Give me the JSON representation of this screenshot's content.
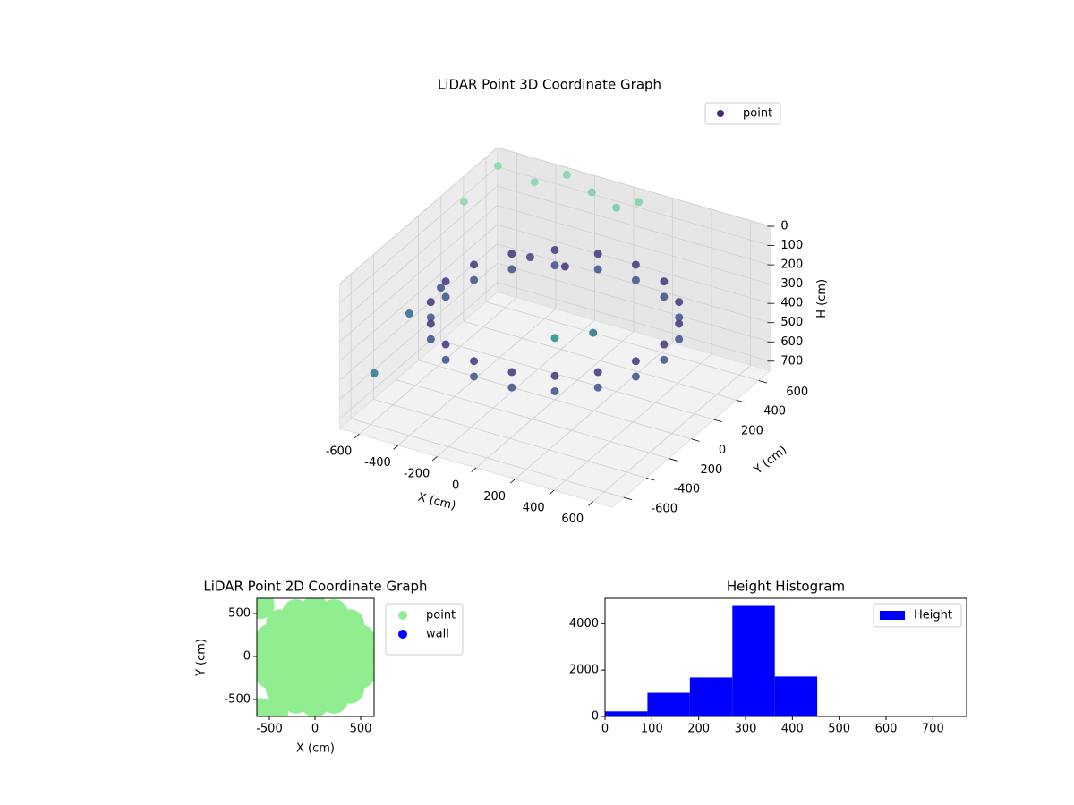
{
  "chart_data": [
    {
      "type": "scatter3d",
      "title": "LiDAR Point 3D Coordinate Graph",
      "xlabel": "X (cm)",
      "ylabel": "Y (cm)",
      "zlabel": "H (cm)",
      "xlim": [
        -700,
        700
      ],
      "ylim": [
        -700,
        700
      ],
      "zlim": [
        0,
        750
      ],
      "z_inverted": true,
      "xticks": [
        -600,
        -400,
        -200,
        0,
        200,
        400,
        600
      ],
      "yticks": [
        -600,
        -400,
        -200,
        0,
        200,
        400,
        600
      ],
      "zticks": [
        0,
        100,
        200,
        300,
        400,
        500,
        600,
        700
      ],
      "grid": true,
      "legend": "upper right",
      "series": [
        {
          "name": "point",
          "color": "#482878",
          "x": [
            560,
            526,
            429,
            280,
            97,
            -97,
            -280,
            -429,
            -526,
            -560,
            -526,
            -429,
            -280,
            -97,
            97,
            280,
            429,
            526,
            560,
            526,
            429,
            280,
            97,
            -97,
            -280,
            -429,
            -526,
            -560,
            -526,
            -429,
            -280,
            -97,
            97,
            280,
            429,
            526,
            -650,
            -480,
            -320,
            -180,
            -60,
            60,
            -640,
            -660,
            -650,
            -620,
            0,
            150,
            -300,
            -150
          ],
          "y": [
            0,
            192,
            360,
            485,
            551,
            551,
            485,
            360,
            192,
            0,
            -192,
            -360,
            -485,
            -551,
            -551,
            -485,
            -360,
            -192,
            0,
            192,
            360,
            485,
            551,
            551,
            485,
            360,
            192,
            0,
            -192,
            -360,
            -485,
            -551,
            -551,
            -485,
            -360,
            -192,
            620,
            650,
            660,
            640,
            650,
            640,
            300,
            -150,
            -480,
            60,
            0,
            80,
            300,
            350
          ],
          "z": [
            300,
            300,
            300,
            300,
            300,
            300,
            300,
            300,
            300,
            300,
            300,
            300,
            300,
            300,
            300,
            300,
            300,
            300,
            380,
            380,
            380,
            380,
            380,
            380,
            380,
            380,
            380,
            380,
            380,
            380,
            380,
            380,
            380,
            380,
            380,
            380,
            40,
            90,
            10,
            50,
            100,
            30,
            60,
            420,
            560,
            380,
            430,
            400,
            250,
            280
          ],
          "colors": [
            "#46327e",
            "#46327e",
            "#46327e",
            "#46327e",
            "#46327e",
            "#46327e",
            "#46327e",
            "#46327e",
            "#46327e",
            "#46327e",
            "#46327e",
            "#46327e",
            "#46327e",
            "#46327e",
            "#46327e",
            "#46327e",
            "#46327e",
            "#46327e",
            "#3b528b",
            "#3b528b",
            "#3b528b",
            "#3b528b",
            "#3b528b",
            "#3b528b",
            "#3b528b",
            "#3b528b",
            "#3b528b",
            "#3b528b",
            "#3b528b",
            "#3b528b",
            "#3b528b",
            "#3b528b",
            "#3b528b",
            "#3b528b",
            "#3b528b",
            "#3b528b",
            "#8fd7a9",
            "#86d5ab",
            "#7fd2ac",
            "#74cfad",
            "#6ccdae",
            "#7dd1ab",
            "#8fd7a9",
            "#31688e",
            "#2a788e",
            "#3b518b",
            "#21908d",
            "#2c728e",
            "#433e85",
            "#472d7b"
          ]
        }
      ]
    },
    {
      "type": "scatter",
      "title": "LiDAR Point 2D Coordinate Graph",
      "xlabel": "X (cm)",
      "ylabel": "Y (cm)",
      "xlim": [
        -637,
        647
      ],
      "ylim": [
        -698,
        677
      ],
      "xticks": [
        -500,
        0,
        500
      ],
      "yticks": [
        -500,
        0,
        500
      ],
      "legend": "right",
      "series": [
        {
          "name": "point",
          "color": "#90ee90",
          "x": [
            0,
            200,
            100,
            -100,
            -200,
            -100,
            100,
            380,
            307,
            117,
            -117,
            -307,
            -380,
            -307,
            -117,
            117,
            307,
            540,
            499,
            382,
            207,
            0,
            -207,
            -382,
            -499,
            -540,
            -499,
            -382,
            -207,
            0,
            207,
            382,
            499,
            -600,
            -600,
            -450
          ],
          "y": [
            0,
            0,
            173,
            173,
            0,
            -173,
            -173,
            0,
            223,
            361,
            361,
            223,
            0,
            -223,
            -361,
            -361,
            -223,
            0,
            207,
            382,
            499,
            540,
            499,
            382,
            207,
            0,
            -207,
            -382,
            -499,
            -540,
            -499,
            -382,
            -207,
            600,
            -650,
            -650
          ]
        },
        {
          "name": "wall",
          "color": "#0000ff",
          "x": [],
          "y": []
        }
      ]
    },
    {
      "type": "histogram",
      "title": "Height Histogram",
      "bins": [
        0,
        90.6,
        181.2,
        271.9,
        362.5,
        453.1,
        543.7,
        634.4,
        725
      ],
      "xlim": [
        0,
        772
      ],
      "ylim": [
        0,
        5090
      ],
      "xticks": [
        0,
        100,
        200,
        300,
        400,
        500,
        600,
        700
      ],
      "yticks": [
        0,
        2000,
        4000
      ],
      "legend": "upper right",
      "series": [
        {
          "name": "Height",
          "color": "#0000ff",
          "values": [
            220,
            1020,
            1680,
            4800,
            1720,
            20,
            15,
            10
          ]
        }
      ]
    }
  ]
}
